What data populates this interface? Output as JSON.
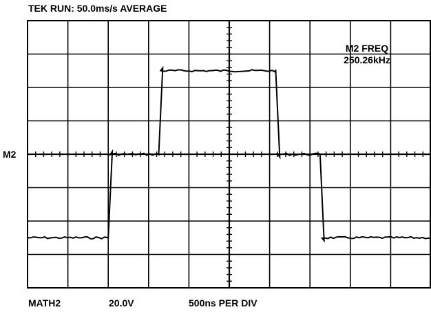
{
  "header": {
    "status_text": "TEK RUN:  50.0ms/s AVERAGE"
  },
  "trace": {
    "marker_label": "M2"
  },
  "measurement": {
    "title": "M2 FREQ",
    "value": "250.26kHz"
  },
  "footer": {
    "channel": "MATH2",
    "volts_per_div": "20.0V",
    "timebase": "500ns PER DIV"
  },
  "colors": {
    "background": "#ffffff",
    "graticule": "#000000",
    "trace": "#000000"
  },
  "display": {
    "horizontal_divisions": 10,
    "vertical_divisions": 8
  },
  "waveform": {
    "description_levels": [
      -2.5,
      0,
      2.5,
      0,
      -2.5
    ],
    "transition_times_div": [
      2.05,
      3.3,
      6.2,
      7.3
    ]
  }
}
